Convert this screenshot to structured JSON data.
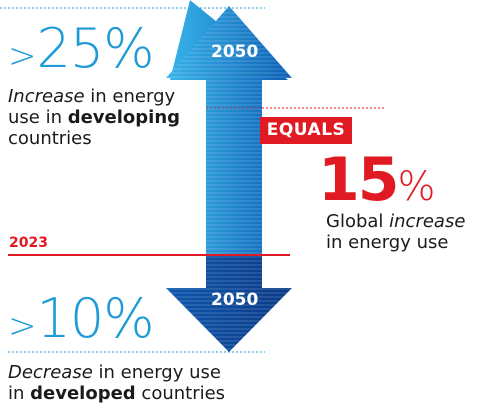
{
  "colors": {
    "accent_blue": "#1e9ad6",
    "arrow_light": "#2aa6e0",
    "arrow_dark": "#0b3f8f",
    "accent_red": "#e01a22",
    "text": "#1a1a1a"
  },
  "top": {
    "prefix": ">",
    "value": "25%",
    "line1_italic": "Increase",
    "line1_rest": " in energy",
    "line2_start": "use in ",
    "line2_bold": "developing",
    "line3": "countries",
    "arrow_year": "2050"
  },
  "bottom": {
    "prefix": ">",
    "value": "10%",
    "line1_italic": "Decrease",
    "line1_rest": " in energy use",
    "line2_start": "in ",
    "line2_bold": "developed",
    "line2_end": " countries",
    "arrow_year": "2050"
  },
  "baseline_year": "2023",
  "result": {
    "badge": "EQUALS",
    "value": "15",
    "unit": "%",
    "line1_start": "Global ",
    "line1_italic": "increase",
    "line2": "in energy use"
  }
}
